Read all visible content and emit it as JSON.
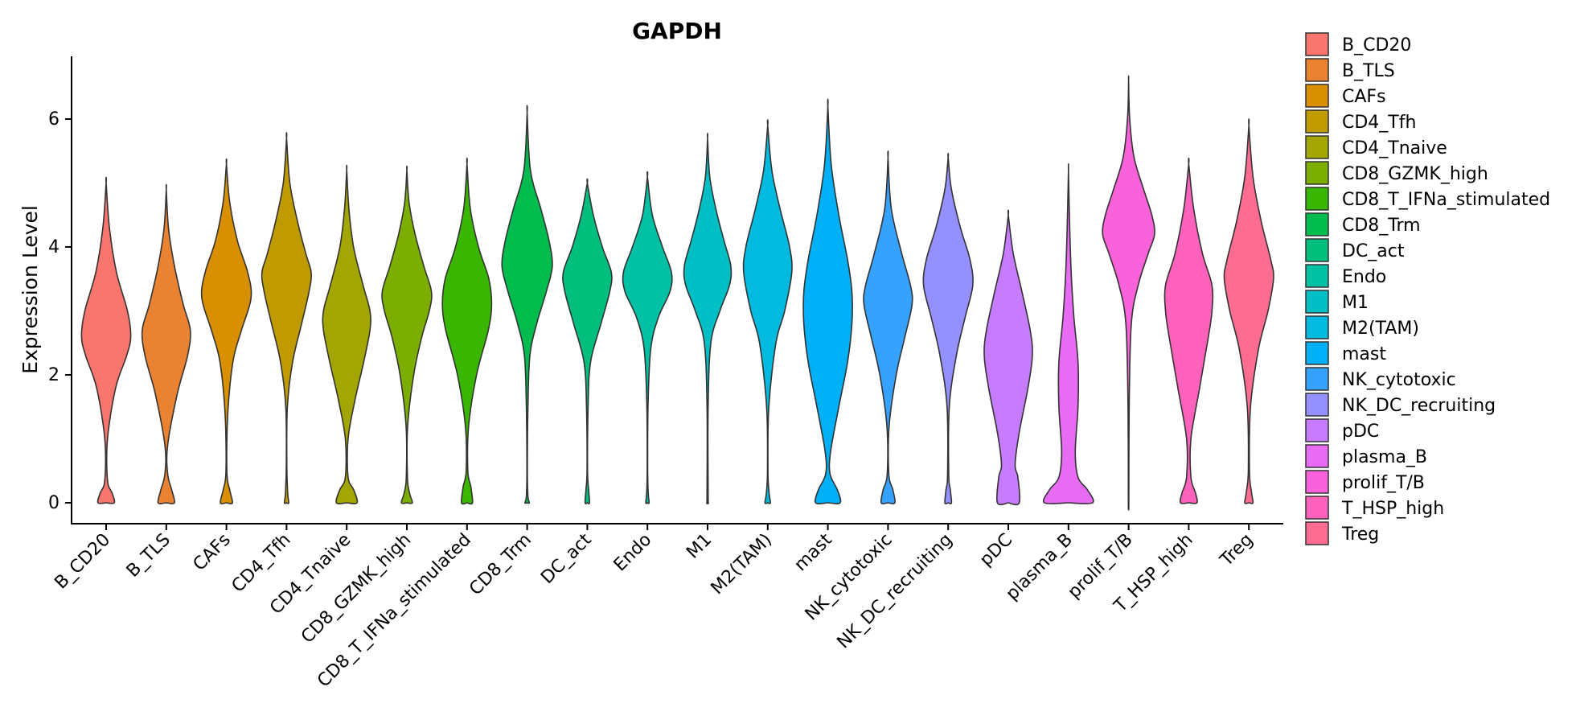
{
  "chart_data": {
    "type": "violin",
    "title": "GAPDH",
    "xlabel": "",
    "ylabel": "Expression Level",
    "ylim": [
      -0.5,
      7
    ],
    "yticks": [
      0,
      2,
      4,
      6
    ],
    "grid": false,
    "legend_position": "right",
    "categories": [
      "B_CD20",
      "B_TLS",
      "CAFs",
      "CD4_Tfh",
      "CD4_Tnaive",
      "CD8_GZMK_high",
      "CD8_T_IFNa_stimulated",
      "CD8_Trm",
      "DC_act",
      "Endo",
      "M1",
      "M2(TAM)",
      "mast",
      "NK_cytotoxic",
      "NK_DC_recruiting",
      "pDC",
      "plasma_B",
      "prolif_T/B",
      "T_HSP_high",
      "Treg"
    ],
    "colors": [
      "#F8766D",
      "#EA8331",
      "#D89000",
      "#C09B00",
      "#A3A500",
      "#7CAE00",
      "#39B600",
      "#00BB4E",
      "#00BF7D",
      "#00C1A3",
      "#00BFC4",
      "#00BAE0",
      "#00B0F6",
      "#35A2FF",
      "#9590FF",
      "#C77CFF",
      "#E76BF3",
      "#FA62DB",
      "#FF62BC",
      "#FF6C91"
    ],
    "violins": [
      {
        "max": 5.0,
        "profile": [
          [
            0,
            0.3
          ],
          [
            0.15,
            0.22
          ],
          [
            0.35,
            0.05
          ],
          [
            1.0,
            0.05
          ],
          [
            1.8,
            0.35
          ],
          [
            2.3,
            0.75
          ],
          [
            2.6,
            0.9
          ],
          [
            3.0,
            0.78
          ],
          [
            3.6,
            0.38
          ],
          [
            4.3,
            0.12
          ],
          [
            5.0,
            0
          ]
        ]
      },
      {
        "max": 4.9,
        "profile": [
          [
            0,
            0.3
          ],
          [
            0.2,
            0.2
          ],
          [
            0.45,
            0.05
          ],
          [
            0.9,
            0.05
          ],
          [
            1.7,
            0.4
          ],
          [
            2.3,
            0.78
          ],
          [
            2.7,
            0.88
          ],
          [
            3.1,
            0.62
          ],
          [
            3.7,
            0.3
          ],
          [
            4.3,
            0.08
          ],
          [
            4.9,
            0
          ]
        ]
      },
      {
        "max": 5.3,
        "profile": [
          [
            0,
            0.22
          ],
          [
            0.2,
            0.12
          ],
          [
            0.45,
            0.02
          ],
          [
            1.2,
            0.03
          ],
          [
            1.8,
            0.12
          ],
          [
            2.3,
            0.28
          ],
          [
            2.7,
            0.55
          ],
          [
            3.2,
            0.9
          ],
          [
            3.6,
            0.78
          ],
          [
            4.1,
            0.4
          ],
          [
            4.7,
            0.12
          ],
          [
            5.3,
            0
          ]
        ]
      },
      {
        "max": 5.7,
        "profile": [
          [
            0,
            0.08
          ],
          [
            0.15,
            0.04
          ],
          [
            0.6,
            0.01
          ],
          [
            1.5,
            0.03
          ],
          [
            2.2,
            0.22
          ],
          [
            2.8,
            0.55
          ],
          [
            3.3,
            0.82
          ],
          [
            3.6,
            0.9
          ],
          [
            3.9,
            0.7
          ],
          [
            4.4,
            0.4
          ],
          [
            5.0,
            0.12
          ],
          [
            5.7,
            0
          ]
        ]
      },
      {
        "max": 5.2,
        "profile": [
          [
            0,
            0.38
          ],
          [
            0.2,
            0.26
          ],
          [
            0.4,
            0.05
          ],
          [
            1.0,
            0.05
          ],
          [
            1.6,
            0.3
          ],
          [
            2.2,
            0.62
          ],
          [
            2.7,
            0.85
          ],
          [
            3.0,
            0.85
          ],
          [
            3.4,
            0.6
          ],
          [
            4.0,
            0.25
          ],
          [
            4.6,
            0.08
          ],
          [
            5.2,
            0
          ]
        ]
      },
      {
        "max": 5.2,
        "profile": [
          [
            0,
            0.2
          ],
          [
            0.15,
            0.1
          ],
          [
            0.4,
            0.02
          ],
          [
            1.2,
            0.03
          ],
          [
            2.0,
            0.25
          ],
          [
            2.6,
            0.55
          ],
          [
            3.0,
            0.82
          ],
          [
            3.3,
            0.9
          ],
          [
            3.7,
            0.62
          ],
          [
            4.2,
            0.3
          ],
          [
            4.7,
            0.08
          ],
          [
            5.2,
            0
          ]
        ]
      },
      {
        "max": 5.3,
        "profile": [
          [
            0,
            0.2
          ],
          [
            0.25,
            0.14
          ],
          [
            0.5,
            0.03
          ],
          [
            1.2,
            0.06
          ],
          [
            2.0,
            0.35
          ],
          [
            2.7,
            0.78
          ],
          [
            3.1,
            0.9
          ],
          [
            3.5,
            0.8
          ],
          [
            4.0,
            0.42
          ],
          [
            4.6,
            0.12
          ],
          [
            5.3,
            0
          ]
        ]
      },
      {
        "max": 6.1,
        "profile": [
          [
            0,
            0.08
          ],
          [
            0.1,
            0.03
          ],
          [
            0.5,
            0.01
          ],
          [
            1.5,
            0.03
          ],
          [
            2.3,
            0.1
          ],
          [
            2.8,
            0.35
          ],
          [
            3.3,
            0.7
          ],
          [
            3.7,
            0.92
          ],
          [
            4.1,
            0.8
          ],
          [
            4.6,
            0.5
          ],
          [
            5.2,
            0.12
          ],
          [
            6.1,
            0
          ]
        ]
      },
      {
        "max": 5.0,
        "profile": [
          [
            0,
            0.08
          ],
          [
            0.2,
            0.05
          ],
          [
            0.5,
            0.01
          ],
          [
            1.5,
            0.03
          ],
          [
            2.2,
            0.12
          ],
          [
            2.8,
            0.5
          ],
          [
            3.3,
            0.82
          ],
          [
            3.6,
            0.88
          ],
          [
            4.0,
            0.55
          ],
          [
            4.5,
            0.22
          ],
          [
            5.0,
            0
          ]
        ]
      },
      {
        "max": 5.1,
        "profile": [
          [
            0,
            0.06
          ],
          [
            0.15,
            0.03
          ],
          [
            0.5,
            0.01
          ],
          [
            1.5,
            0.02
          ],
          [
            2.4,
            0.12
          ],
          [
            2.9,
            0.4
          ],
          [
            3.3,
            0.82
          ],
          [
            3.6,
            0.88
          ],
          [
            4.0,
            0.55
          ],
          [
            4.5,
            0.18
          ],
          [
            5.1,
            0
          ]
        ]
      },
      {
        "max": 5.7,
        "profile": [
          [
            0,
            0.03
          ],
          [
            0.2,
            0.02
          ],
          [
            1.5,
            0.02
          ],
          [
            2.5,
            0.12
          ],
          [
            3.0,
            0.45
          ],
          [
            3.4,
            0.8
          ],
          [
            3.7,
            0.85
          ],
          [
            4.1,
            0.6
          ],
          [
            4.6,
            0.3
          ],
          [
            5.1,
            0.08
          ],
          [
            5.7,
            0
          ]
        ]
      },
      {
        "max": 5.9,
        "profile": [
          [
            0,
            0.1
          ],
          [
            0.15,
            0.05
          ],
          [
            0.5,
            0.01
          ],
          [
            1.5,
            0.04
          ],
          [
            2.5,
            0.3
          ],
          [
            3.0,
            0.62
          ],
          [
            3.6,
            0.88
          ],
          [
            4.0,
            0.8
          ],
          [
            4.6,
            0.45
          ],
          [
            5.2,
            0.15
          ],
          [
            5.9,
            0
          ]
        ]
      },
      {
        "max": 6.2,
        "profile": [
          [
            0,
            0.45
          ],
          [
            0.2,
            0.35
          ],
          [
            0.45,
            0.08
          ],
          [
            0.8,
            0.1
          ],
          [
            1.5,
            0.4
          ],
          [
            2.2,
            0.72
          ],
          [
            2.8,
            0.88
          ],
          [
            3.3,
            0.88
          ],
          [
            3.8,
            0.72
          ],
          [
            4.5,
            0.4
          ],
          [
            5.3,
            0.12
          ],
          [
            6.2,
            0
          ]
        ]
      },
      {
        "max": 5.4,
        "profile": [
          [
            0,
            0.25
          ],
          [
            0.2,
            0.18
          ],
          [
            0.45,
            0.03
          ],
          [
            1.2,
            0.04
          ],
          [
            2.0,
            0.3
          ],
          [
            2.6,
            0.62
          ],
          [
            3.1,
            0.88
          ],
          [
            3.4,
            0.82
          ],
          [
            3.9,
            0.5
          ],
          [
            4.6,
            0.12
          ],
          [
            5.4,
            0
          ]
        ]
      },
      {
        "max": 5.4,
        "profile": [
          [
            0,
            0.12
          ],
          [
            0.2,
            0.08
          ],
          [
            0.45,
            0.02
          ],
          [
            1.5,
            0.04
          ],
          [
            2.3,
            0.3
          ],
          [
            2.9,
            0.62
          ],
          [
            3.4,
            0.9
          ],
          [
            3.8,
            0.8
          ],
          [
            4.3,
            0.45
          ],
          [
            4.9,
            0.12
          ],
          [
            5.4,
            0
          ]
        ]
      },
      {
        "max": 4.5,
        "profile": [
          [
            0,
            0.4
          ],
          [
            0.4,
            0.35
          ],
          [
            0.6,
            0.25
          ],
          [
            1.1,
            0.4
          ],
          [
            1.8,
            0.72
          ],
          [
            2.3,
            0.88
          ],
          [
            2.7,
            0.8
          ],
          [
            3.3,
            0.5
          ],
          [
            3.9,
            0.18
          ],
          [
            4.5,
            0
          ]
        ]
      },
      {
        "max": 5.2,
        "profile": [
          [
            0,
            0.88
          ],
          [
            0.2,
            0.7
          ],
          [
            0.4,
            0.35
          ],
          [
            0.8,
            0.25
          ],
          [
            1.5,
            0.35
          ],
          [
            2.2,
            0.35
          ],
          [
            2.9,
            0.2
          ],
          [
            3.6,
            0.1
          ],
          [
            4.4,
            0.04
          ],
          [
            5.2,
            0
          ]
        ]
      },
      {
        "max": 6.6,
        "profile": [
          [
            0,
            0.01
          ],
          [
            1.5,
            0.02
          ],
          [
            2.8,
            0.1
          ],
          [
            3.4,
            0.35
          ],
          [
            3.9,
            0.72
          ],
          [
            4.2,
            0.95
          ],
          [
            4.5,
            0.85
          ],
          [
            4.9,
            0.55
          ],
          [
            5.4,
            0.2
          ],
          [
            6.0,
            0.04
          ],
          [
            6.6,
            0
          ]
        ]
      },
      {
        "max": 5.3,
        "profile": [
          [
            0,
            0.3
          ],
          [
            0.15,
            0.25
          ],
          [
            0.4,
            0.08
          ],
          [
            1.0,
            0.08
          ],
          [
            1.8,
            0.4
          ],
          [
            2.6,
            0.72
          ],
          [
            3.0,
            0.85
          ],
          [
            3.4,
            0.85
          ],
          [
            3.9,
            0.5
          ],
          [
            4.6,
            0.18
          ],
          [
            5.3,
            0
          ]
        ]
      },
      {
        "max": 5.9,
        "profile": [
          [
            0,
            0.15
          ],
          [
            0.15,
            0.1
          ],
          [
            0.5,
            0.02
          ],
          [
            1.5,
            0.06
          ],
          [
            2.4,
            0.35
          ],
          [
            3.0,
            0.7
          ],
          [
            3.5,
            0.9
          ],
          [
            3.8,
            0.8
          ],
          [
            4.4,
            0.45
          ],
          [
            5.1,
            0.15
          ],
          [
            5.9,
            0
          ]
        ]
      }
    ]
  }
}
